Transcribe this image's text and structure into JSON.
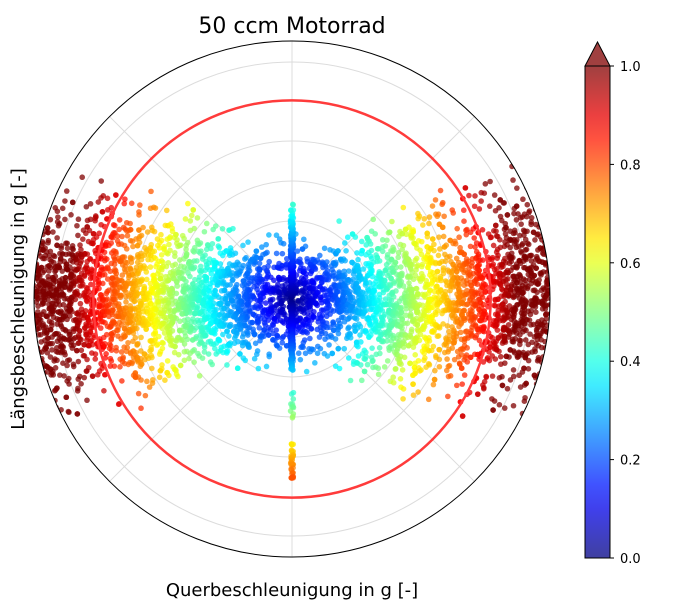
{
  "chart_data": {
    "type": "scatter",
    "projection": "polar",
    "title": "50 ccm Motorrad",
    "xlabel": "Querbeschleunigung in g [-]",
    "ylabel": "Längsbeschleunigung in g [-]",
    "radial_ticks_visible": false,
    "angular_ticks_visible": false,
    "grid": true,
    "angular_grid_deg": [
      0,
      45,
      90,
      135,
      180,
      225,
      270,
      315
    ],
    "radial_grid_count": 6,
    "reference_circle": {
      "color": "#ff3b3b",
      "relative_radius": 0.77
    },
    "point_color_metric": "normalized total acceleration",
    "colormap": "jet",
    "colorbar": {
      "range": [
        0,
        1.0
      ],
      "ticks": [
        "0.0",
        "0.2",
        "0.4",
        "0.6",
        "0.8",
        "1.0"
      ],
      "extend": "max"
    },
    "point_count_approx": 5000
  }
}
